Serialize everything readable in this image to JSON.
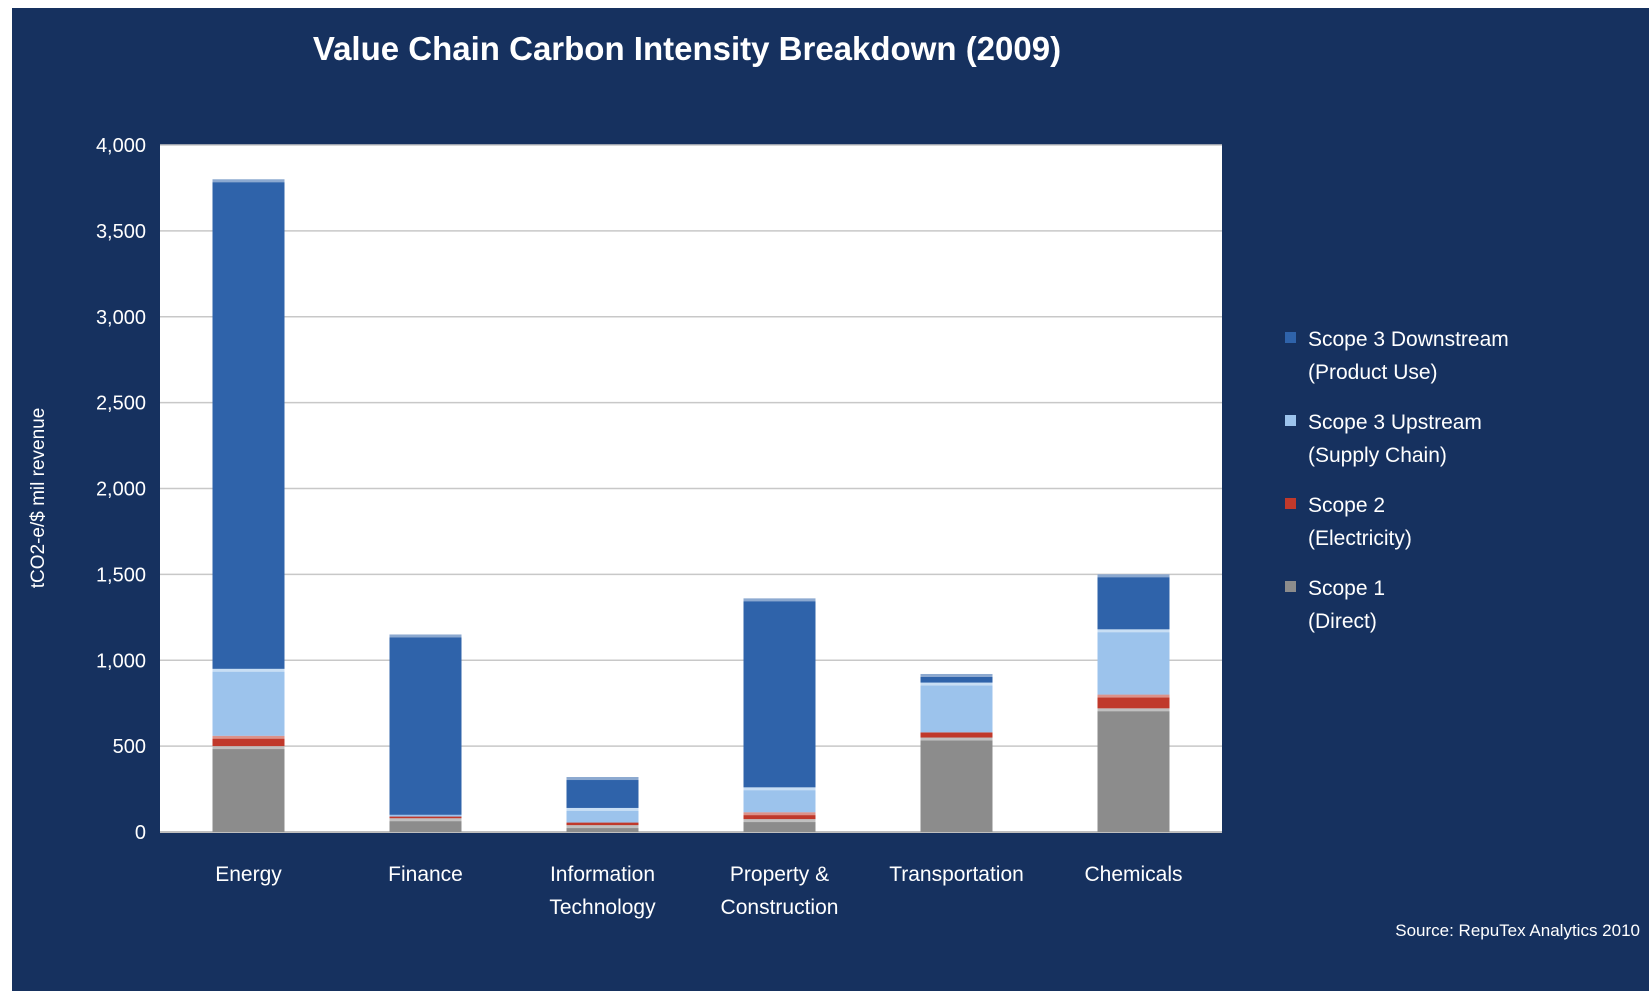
{
  "chart_data": {
    "type": "bar",
    "stacked": true,
    "title": "Value Chain Carbon Intensity Breakdown (2009)",
    "ylabel": "tCO2-e/$ mil revenue",
    "xlabel": "",
    "ylim": [
      0,
      4000
    ],
    "yticks": [
      0,
      500,
      1000,
      1500,
      2000,
      2500,
      3000,
      3500,
      4000
    ],
    "ytick_labels": [
      "0",
      "500",
      "1,000",
      "1,500",
      "2,000",
      "2,500",
      "3,000",
      "3,500",
      "4,000"
    ],
    "grid": true,
    "legend_position": "right",
    "categories": [
      [
        "Energy"
      ],
      [
        "Finance"
      ],
      [
        "Information",
        "Technology"
      ],
      [
        "Property &",
        "Construction"
      ],
      [
        "Transportation"
      ],
      [
        "Chemicals"
      ]
    ],
    "series": [
      {
        "name": [
          "Scope 1",
          "(Direct)"
        ],
        "color": "#8c8c8c",
        "values": [
          500,
          80,
          40,
          75,
          550,
          720
        ]
      },
      {
        "name": [
          "Scope 2",
          "(Electricity)"
        ],
        "color": "#c0392b",
        "values": [
          60,
          10,
          15,
          40,
          30,
          80
        ]
      },
      {
        "name": [
          "Scope 3 Upstream",
          "(Supply Chain)"
        ],
        "color": "#9cc3ec",
        "values": [
          390,
          10,
          85,
          145,
          290,
          380
        ]
      },
      {
        "name": [
          "Scope 3 Downstream",
          "(Product Use)"
        ],
        "color": "#2f63aa",
        "values": [
          2850,
          1050,
          180,
          1100,
          50,
          320
        ]
      }
    ],
    "source": "Source: RepuTex Analytics 2010"
  }
}
